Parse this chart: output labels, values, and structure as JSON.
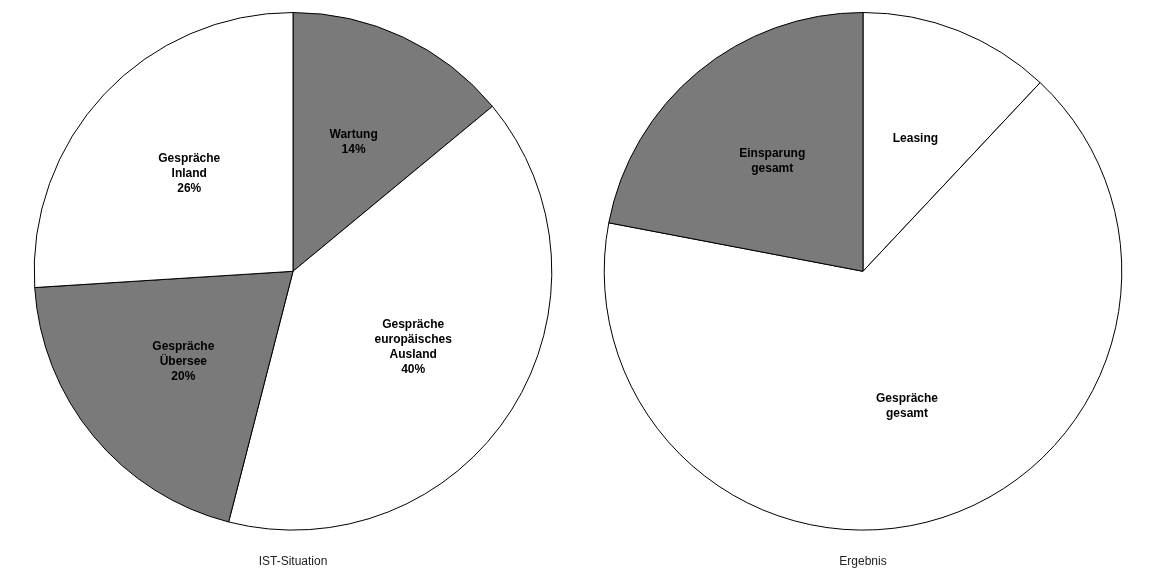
{
  "chart_data": [
    {
      "type": "pie",
      "title": "IST-Situation",
      "categories": [
        "Wartung",
        "Gespräche europäisches Ausland",
        "Gespräche Übersee",
        "Gespräche Inland"
      ],
      "values": [
        14,
        40,
        20,
        26
      ],
      "colors": [
        "#7a7a7a",
        "#ffffff",
        "#7a7a7a",
        "#ffffff"
      ],
      "value_labels": [
        "14%",
        "40%",
        "20%",
        "26%"
      ],
      "legend": false
    },
    {
      "type": "pie",
      "title": "Ergebnis",
      "categories": [
        "Leasing",
        "Gespräche gesamt",
        "Einsparung gesamt"
      ],
      "values": [
        12,
        66,
        22
      ],
      "colors": [
        "#ffffff",
        "#ffffff",
        "#7a7a7a"
      ],
      "legend": false
    }
  ]
}
